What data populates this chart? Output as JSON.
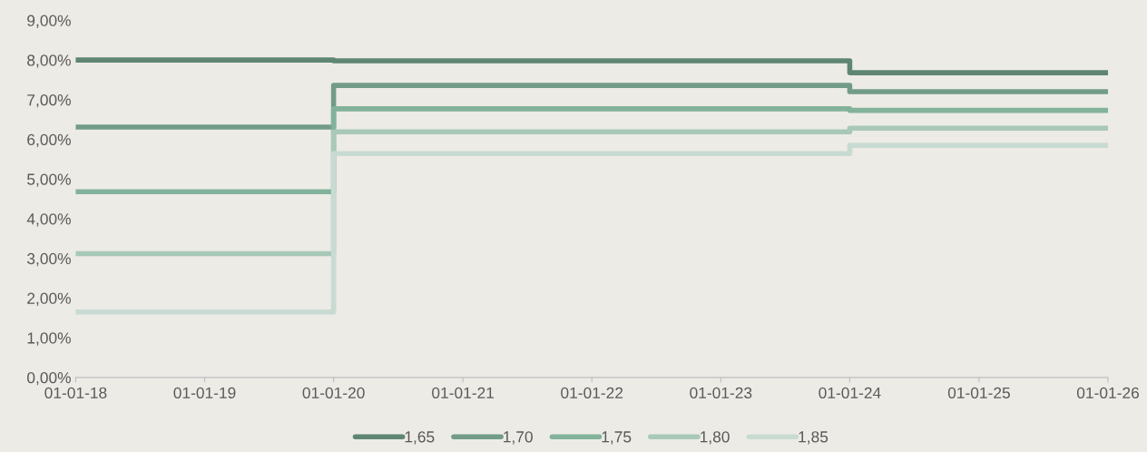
{
  "chart_data": {
    "type": "step",
    "x": [
      "2018-01-01",
      "2020-01-01",
      "2024-01-01",
      "2026-01-01"
    ],
    "series": [
      {
        "name": "1,65",
        "color": "#5e8672",
        "values": [
          8.0,
          7.98,
          7.68,
          7.68
        ]
      },
      {
        "name": "1,70",
        "color": "#729c88",
        "values": [
          6.31,
          7.36,
          7.2,
          7.2
        ]
      },
      {
        "name": "1,75",
        "color": "#82b39a",
        "values": [
          4.68,
          6.77,
          6.73,
          6.73
        ]
      },
      {
        "name": "1,80",
        "color": "#a8c8b8",
        "values": [
          3.12,
          6.19,
          6.28,
          6.28
        ]
      },
      {
        "name": "1,85",
        "color": "#c8dbd2",
        "values": [
          1.65,
          5.64,
          5.85,
          5.85
        ]
      }
    ],
    "xlim": [
      "2018-01-01",
      "2026-01-01"
    ],
    "xticks": [
      {
        "value": "2018-01-01",
        "label": "01-01-18"
      },
      {
        "value": "2019-01-01",
        "label": "01-01-19"
      },
      {
        "value": "2020-01-01",
        "label": "01-01-20"
      },
      {
        "value": "2021-01-01",
        "label": "01-01-21"
      },
      {
        "value": "2022-01-01",
        "label": "01-01-22"
      },
      {
        "value": "2023-01-01",
        "label": "01-01-23"
      },
      {
        "value": "2024-01-01",
        "label": "01-01-24"
      },
      {
        "value": "2025-01-01",
        "label": "01-01-25"
      },
      {
        "value": "2026-01-01",
        "label": "01-01-26"
      }
    ],
    "ylim": [
      0,
      9
    ],
    "yticks": [
      {
        "value": 0,
        "label": "0,00%"
      },
      {
        "value": 1,
        "label": "1,00%"
      },
      {
        "value": 2,
        "label": "2,00%"
      },
      {
        "value": 3,
        "label": "3,00%"
      },
      {
        "value": 4,
        "label": "4,00%"
      },
      {
        "value": 5,
        "label": "5,00%"
      },
      {
        "value": 6,
        "label": "6,00%"
      },
      {
        "value": 7,
        "label": "7,00%"
      },
      {
        "value": 8,
        "label": "8,00%"
      },
      {
        "value": 9,
        "label": "9,00%"
      }
    ],
    "grid": false,
    "legend": "bottom",
    "line_style": "solid"
  }
}
